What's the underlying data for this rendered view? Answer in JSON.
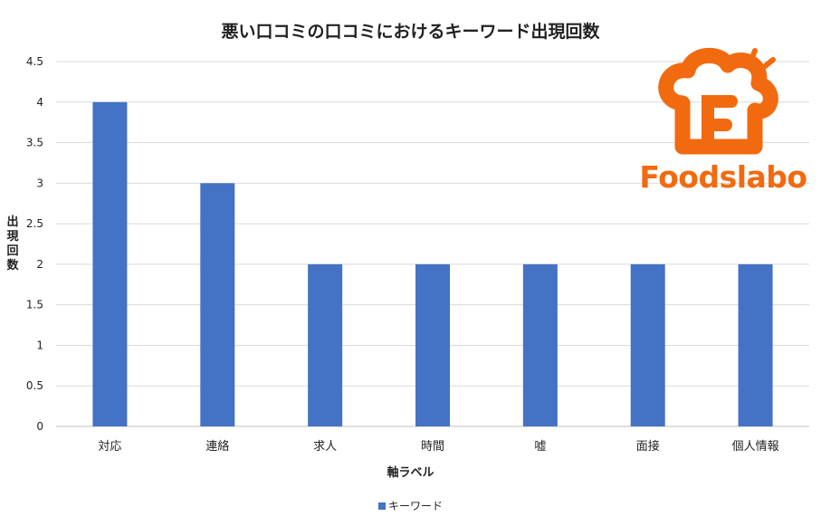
{
  "brand": {
    "logo_text": "Foodslabo",
    "logo_color": "#f26a0f"
  },
  "chart_data": {
    "type": "bar",
    "title": "悪い口コミの口コミにおけるキーワード出現回数",
    "xlabel": "軸ラベル",
    "ylabel": "出現回数",
    "categories": [
      "対応",
      "連絡",
      "求人",
      "時間",
      "嘘",
      "面接",
      "個人情報"
    ],
    "series": [
      {
        "name": "キーワード",
        "values": [
          4,
          3,
          2,
          2,
          2,
          2,
          2
        ],
        "color": "#4472c4"
      }
    ],
    "ylim": [
      0,
      4.5
    ],
    "yticks": [
      "0",
      "0.5",
      "1",
      "1.5",
      "2",
      "2.5",
      "3",
      "3.5",
      "4",
      "4.5"
    ],
    "grid": true,
    "legend_position": "bottom"
  }
}
